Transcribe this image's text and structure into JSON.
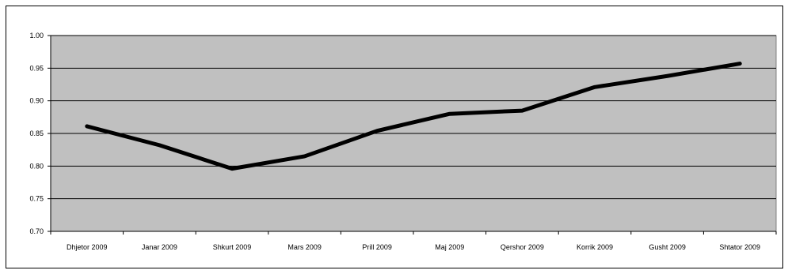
{
  "chart_data": {
    "type": "line",
    "title": "",
    "xlabel": "",
    "ylabel": "",
    "categories": [
      "Dhjetor 2009",
      "Janar 2009",
      "Shkurt 2009",
      "Mars 2009",
      "Prill 2009",
      "Maj 2009",
      "Qershor 2009",
      "Korrik 2009",
      "Gusht 2009",
      "Shtator 2009"
    ],
    "series": [
      {
        "values": [
          0.861,
          0.832,
          0.796,
          0.815,
          0.854,
          0.88,
          0.885,
          0.921,
          0.938,
          0.957
        ]
      }
    ],
    "ylim": [
      0.7,
      1.0
    ],
    "yticks": [
      "0.70",
      "0.75",
      "0.80",
      "0.85",
      "0.90",
      "0.95",
      "1.00"
    ],
    "grid": true,
    "legend": "none",
    "colors": {
      "plot_background": "#c0c0c0",
      "line": "#000000",
      "gridline": "#000000"
    }
  }
}
